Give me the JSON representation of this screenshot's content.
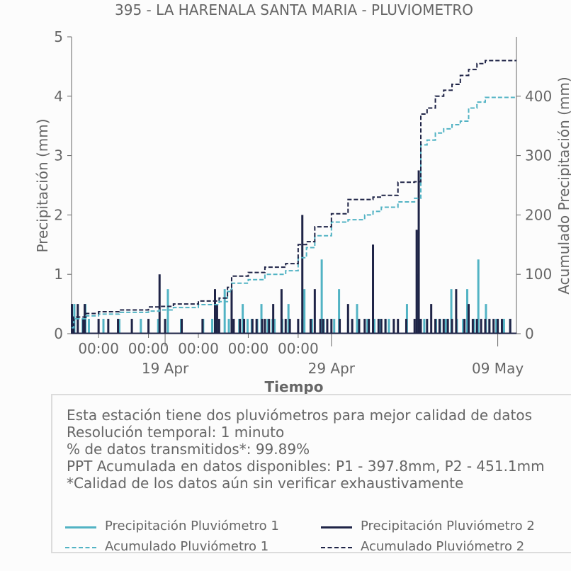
{
  "chart_data": {
    "type": "bar",
    "title": "395 - LA HARENALA SANTA MARIA - PLUVIOMETRO",
    "xlabel": "Tiempo",
    "ylabel": "Precipitación (mm)",
    "y2label": "Acumulado Precipitación (mm)",
    "ylim": [
      0,
      5
    ],
    "y2lim": [
      0,
      500
    ],
    "xlim": [
      "2024-04-13T09:00",
      "2024-05-10T03:00"
    ],
    "yticks": [
      0,
      1,
      2,
      3,
      4,
      5
    ],
    "y2ticks": [
      0,
      100,
      200,
      300,
      400
    ],
    "xticks_top": [
      "00:00",
      "00:00",
      "00:00",
      "00:00",
      "00:00"
    ],
    "xticks_top_dates": [
      "2024-04-15T00:00",
      "2024-04-18T00:00",
      "2024-04-21T00:00",
      "2024-04-24T00:00",
      "2024-04-27T00:00"
    ],
    "xticks_bottom": [
      "19 Apr",
      "29 Apr",
      "09 May"
    ],
    "xticks_bottom_dates": [
      "2024-04-19T00:00",
      "2024-04-29T00:00",
      "2024-05-09T00:00"
    ],
    "series": [
      {
        "name": "Precipitación Pluviómetro 1",
        "kind": "bar",
        "color": "#52b3c4",
        "x": [
          "2024-04-13T10:00",
          "2024-04-13T13:00",
          "2024-04-14T01:00",
          "2024-04-14T05:00",
          "2024-04-14T10:00",
          "2024-04-15T07:00",
          "2024-04-16T06:00",
          "2024-04-17T13:00",
          "2024-04-18T14:00",
          "2024-04-19T04:00",
          "2024-04-19T23:00",
          "2024-04-21T07:00",
          "2024-04-21T20:00",
          "2024-04-22T14:00",
          "2024-04-22T20:00",
          "2024-04-23T11:00",
          "2024-04-23T16:00",
          "2024-04-23T23:00",
          "2024-04-24T05:00",
          "2024-04-24T13:00",
          "2024-04-24T19:00",
          "2024-04-25T04:00",
          "2024-04-25T11:00",
          "2024-04-25T14:00",
          "2024-04-26T01:00",
          "2024-04-26T10:00",
          "2024-04-27T06:00",
          "2024-04-27T09:00",
          "2024-04-27T20:00",
          "2024-04-28T10:00",
          "2024-04-28T13:00",
          "2024-04-29T04:00",
          "2024-04-29T11:00",
          "2024-04-30T00:00",
          "2024-04-30T13:00",
          "2024-05-01T04:00",
          "2024-05-01T14:00",
          "2024-05-01T23:00",
          "2024-05-02T06:00",
          "2024-05-02T11:00",
          "2024-05-03T13:00",
          "2024-05-04T04:00",
          "2024-05-04T09:00",
          "2024-05-04T14:00",
          "2024-05-05T07:00",
          "2024-05-05T13:00",
          "2024-05-05T21:00",
          "2024-05-06T05:00",
          "2024-05-06T13:00",
          "2024-05-06T22:00",
          "2024-05-07T04:00",
          "2024-05-07T14:00",
          "2024-05-07T20:00",
          "2024-05-08T07:00",
          "2024-05-08T12:00",
          "2024-05-08T22:00",
          "2024-05-09T09:00",
          "2024-05-09T18:00"
        ],
        "values": [
          0.25,
          0.5,
          0.25,
          0.5,
          0.25,
          0.25,
          0.25,
          0.25,
          0.25,
          0.75,
          0.25,
          0.25,
          0.25,
          0.75,
          0.25,
          0.25,
          0.5,
          0.25,
          0.25,
          0.25,
          0.5,
          0.25,
          0.25,
          0.25,
          0.25,
          0.5,
          0.25,
          0.75,
          0.25,
          1.25,
          0.25,
          0.25,
          0.75,
          0.25,
          0.5,
          0.25,
          0.25,
          0.25,
          0.25,
          0.25,
          0.5,
          1.0,
          0.25,
          0.25,
          0.25,
          0.25,
          0.25,
          0.75,
          0.25,
          0.25,
          0.75,
          0.25,
          1.25,
          0.5,
          0.25,
          0.25,
          0.25,
          0.25
        ]
      },
      {
        "name": "Precipitación Pluviómetro 2",
        "kind": "bar",
        "color": "#1f2447",
        "x": [
          "2024-04-13T09:30",
          "2024-04-13T12:00",
          "2024-04-13T18:00",
          "2024-04-14T02:00",
          "2024-04-14T04:00",
          "2024-04-15T00:00",
          "2024-04-15T14:00",
          "2024-04-16T04:00",
          "2024-04-17T00:00",
          "2024-04-18T00:00",
          "2024-04-18T16:00",
          "2024-04-19T00:00",
          "2024-04-20T00:00",
          "2024-04-21T06:00",
          "2024-04-22T00:00",
          "2024-04-22T03:00",
          "2024-04-22T06:00",
          "2024-04-23T00:00",
          "2024-04-23T03:00",
          "2024-04-23T12:00",
          "2024-04-23T18:00",
          "2024-04-24T06:00",
          "2024-04-24T12:00",
          "2024-04-24T20:00",
          "2024-04-25T00:00",
          "2024-04-25T06:00",
          "2024-04-25T12:00",
          "2024-04-26T00:00",
          "2024-04-26T06:00",
          "2024-04-26T12:00",
          "2024-04-27T00:00",
          "2024-04-27T06:00",
          "2024-04-27T18:00",
          "2024-04-28T00:00",
          "2024-04-28T08:00",
          "2024-04-28T12:00",
          "2024-04-28T18:00",
          "2024-04-29T00:00",
          "2024-04-29T12:00",
          "2024-04-30T00:00",
          "2024-04-30T06:00",
          "2024-04-30T16:00",
          "2024-05-01T00:00",
          "2024-05-01T06:00",
          "2024-05-01T12:00",
          "2024-05-01T20:00",
          "2024-05-02T00:00",
          "2024-05-02T06:00",
          "2024-05-02T18:00",
          "2024-05-03T00:00",
          "2024-05-03T12:00",
          "2024-05-04T00:00",
          "2024-05-04T03:00",
          "2024-05-04T06:00",
          "2024-05-04T09:00",
          "2024-05-04T18:00",
          "2024-05-05T00:00",
          "2024-05-05T06:00",
          "2024-05-05T12:00",
          "2024-05-05T18:00",
          "2024-05-06T00:00",
          "2024-05-06T06:00",
          "2024-05-06T12:00",
          "2024-05-07T00:00",
          "2024-05-07T06:00",
          "2024-05-07T12:00",
          "2024-05-07T18:00",
          "2024-05-08T00:00",
          "2024-05-08T06:00",
          "2024-05-08T12:00",
          "2024-05-08T18:00",
          "2024-05-09T00:00",
          "2024-05-09T06:00",
          "2024-05-09T18:00"
        ],
        "values": [
          0.5,
          0.25,
          0.5,
          0.25,
          0.5,
          0.25,
          0.25,
          0.25,
          0.25,
          0.25,
          1.0,
          0.25,
          0.25,
          0.25,
          0.75,
          0.5,
          0.25,
          0.75,
          0.25,
          0.25,
          0.25,
          0.25,
          0.25,
          0.25,
          0.25,
          0.25,
          0.5,
          0.75,
          0.25,
          0.25,
          0.25,
          2.0,
          0.25,
          0.75,
          0.25,
          0.25,
          0.25,
          0.25,
          0.25,
          0.5,
          0.25,
          0.25,
          0.25,
          0.25,
          1.5,
          0.25,
          0.25,
          0.25,
          0.25,
          0.25,
          0.25,
          0.25,
          1.75,
          2.75,
          0.25,
          0.25,
          0.5,
          0.25,
          0.25,
          0.25,
          0.25,
          0.25,
          0.75,
          0.25,
          0.5,
          0.25,
          0.25,
          0.25,
          0.25,
          0.25,
          0.25,
          0.25,
          0.25,
          0.25
        ]
      },
      {
        "name": "Acumulado Pluviómetro 1",
        "kind": "step-line",
        "dashed": true,
        "color": "#52b3c4",
        "x": [
          "2024-04-13T09:00",
          "2024-04-13T12:00",
          "2024-04-14T06:00",
          "2024-04-15T00:00",
          "2024-04-16T06:00",
          "2024-04-18T00:00",
          "2024-04-18T16:00",
          "2024-04-19T12:00",
          "2024-04-21T00:00",
          "2024-04-22T06:00",
          "2024-04-22T18:00",
          "2024-04-23T00:00",
          "2024-04-24T00:00",
          "2024-04-25T00:00",
          "2024-04-26T06:00",
          "2024-04-27T00:00",
          "2024-04-27T12:00",
          "2024-04-28T00:00",
          "2024-04-29T00:00",
          "2024-04-30T00:00",
          "2024-05-01T00:00",
          "2024-05-01T12:00",
          "2024-05-02T00:00",
          "2024-05-03T00:00",
          "2024-05-04T00:00",
          "2024-05-04T09:00",
          "2024-05-04T18:00",
          "2024-05-05T06:00",
          "2024-05-05T18:00",
          "2024-05-06T06:00",
          "2024-05-06T18:00",
          "2024-05-07T06:00",
          "2024-05-07T18:00",
          "2024-05-08T06:00",
          "2024-05-08T18:00",
          "2024-05-10T03:00"
        ],
        "values": [
          10,
          25,
          30,
          33,
          36,
          38,
          40,
          44,
          49,
          54,
          71,
          85,
          91,
          100,
          106,
          128,
          145,
          165,
          188,
          192,
          200,
          206,
          213,
          222,
          228,
          318,
          326,
          338,
          345,
          352,
          358,
          380,
          390,
          398,
          398,
          398
        ]
      },
      {
        "name": "Acumulado Pluviómetro 2",
        "kind": "step-line",
        "dashed": true,
        "color": "#1f2447",
        "x": [
          "2024-04-13T09:00",
          "2024-04-13T12:00",
          "2024-04-14T06:00",
          "2024-04-15T00:00",
          "2024-04-16T06:00",
          "2024-04-18T00:00",
          "2024-04-18T16:00",
          "2024-04-19T12:00",
          "2024-04-21T00:00",
          "2024-04-22T06:00",
          "2024-04-22T18:00",
          "2024-04-23T00:00",
          "2024-04-24T00:00",
          "2024-04-25T00:00",
          "2024-04-26T06:00",
          "2024-04-27T00:00",
          "2024-04-27T12:00",
          "2024-04-28T00:00",
          "2024-04-29T00:00",
          "2024-04-30T00:00",
          "2024-05-01T00:00",
          "2024-05-01T12:00",
          "2024-05-02T00:00",
          "2024-05-03T00:00",
          "2024-05-04T00:00",
          "2024-05-04T09:00",
          "2024-05-04T18:00",
          "2024-05-05T06:00",
          "2024-05-05T18:00",
          "2024-05-06T06:00",
          "2024-05-06T18:00",
          "2024-05-07T06:00",
          "2024-05-07T18:00",
          "2024-05-08T06:00",
          "2024-05-08T18:00",
          "2024-05-10T03:00"
        ],
        "values": [
          14,
          28,
          34,
          37,
          40,
          45,
          46,
          50,
          55,
          60,
          78,
          97,
          103,
          112,
          118,
          150,
          155,
          180,
          202,
          226,
          226,
          230,
          233,
          255,
          256,
          370,
          380,
          400,
          410,
          420,
          435,
          445,
          455,
          460,
          460,
          460
        ]
      }
    ]
  },
  "info": {
    "lines": [
      "Esta estación tiene dos pluviómetros para mejor calidad de datos",
      "Resolución temporal: 1 minuto",
      "% de datos transmitidos*: 99.89%",
      "PPT Acumulada en datos disponibles: P1 - 397.8mm, P2 - 451.1mm",
      "*Calidad de los datos aún sin verificar exhaustivamente"
    ]
  },
  "legend": [
    {
      "label": "Precipitación Pluviómetro 1",
      "color": "#52b3c4",
      "style": "solid"
    },
    {
      "label": "Precipitación Pluviómetro 2",
      "color": "#1f2447",
      "style": "solid"
    },
    {
      "label": "Acumulado Pluviómetro 1",
      "color": "#52b3c4",
      "style": "dashed"
    },
    {
      "label": "Acumulado Pluviómetro 2",
      "color": "#1f2447",
      "style": "dashed"
    }
  ]
}
